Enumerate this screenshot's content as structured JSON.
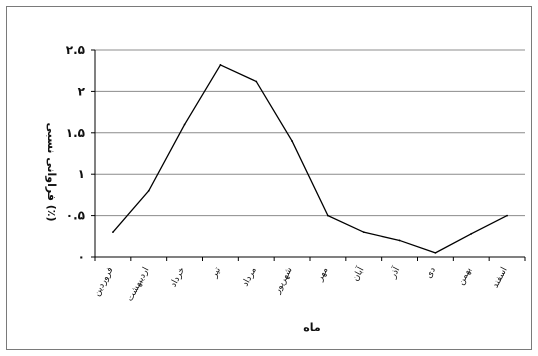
{
  "chart_data": {
    "type": "line",
    "title": "",
    "xlabel": "ماه",
    "ylabel": "فراوانی نسبی (٪)",
    "categories": [
      "فروردین",
      "اردیبهشت",
      "خرداد",
      "تیر",
      "مرداد",
      "شهریور",
      "مهر",
      "آبان",
      "آذر",
      "دی",
      "بهمن",
      "اسفند"
    ],
    "series": [
      {
        "values": [
          0.3,
          0.8,
          1.6,
          2.32,
          2.12,
          1.4,
          0.5,
          0.3,
          0.2,
          0.05,
          0.28,
          0.5
        ]
      }
    ],
    "ylim": [
      0,
      2.5
    ],
    "yticks": [
      0,
      0.5,
      1,
      1.5,
      2,
      2.5
    ],
    "ytick_labels": [
      "۰",
      "۰.۵",
      "۱",
      "۱.۵",
      "۲",
      "۲.۵"
    ],
    "grid": true,
    "line_color": "#000000",
    "grid_color": "#8c8c8c",
    "legend": "none"
  }
}
